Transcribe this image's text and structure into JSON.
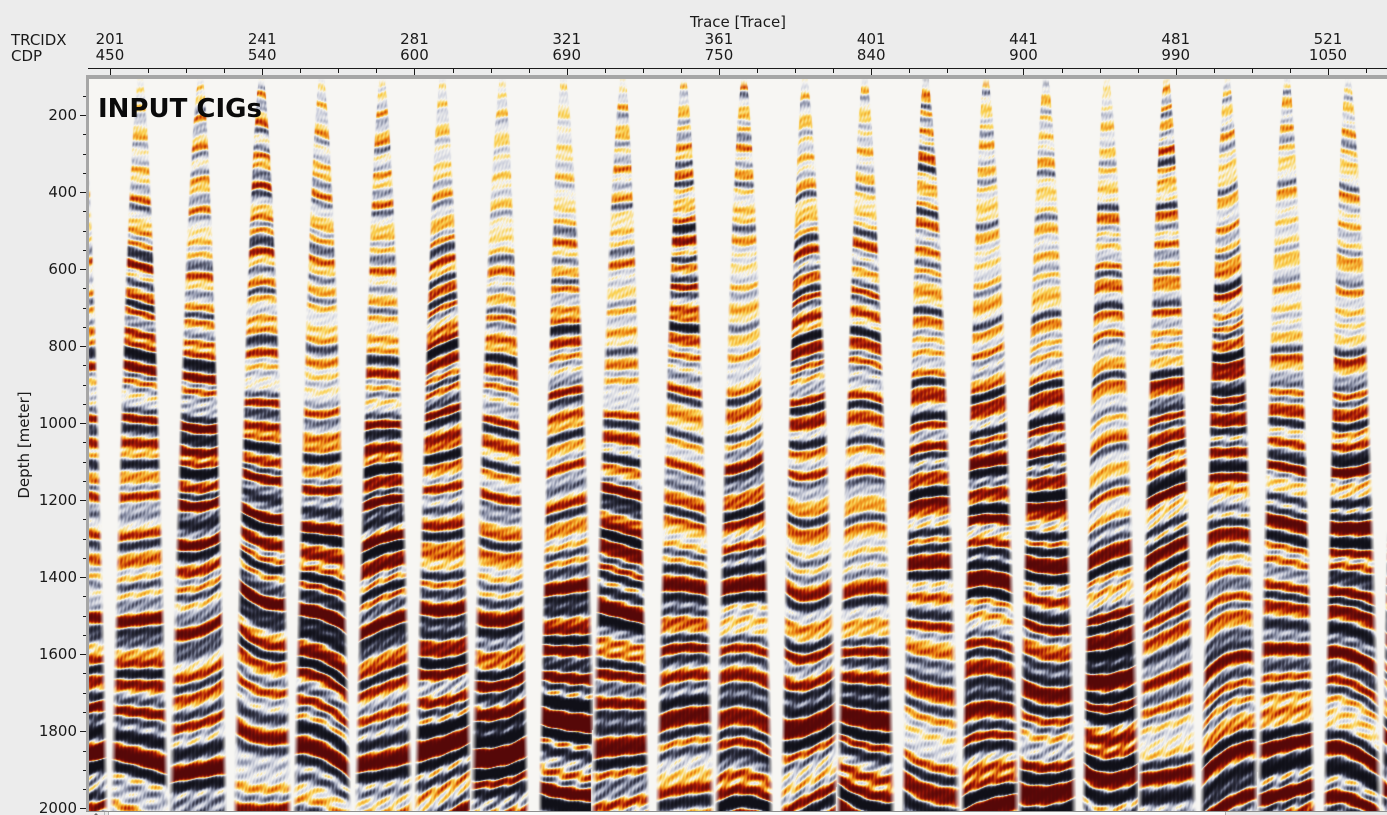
{
  "window": {
    "background": "#ececec"
  },
  "top_axis": {
    "title": "Trace [Trace]",
    "row1_label": "TRCIDX",
    "row2_label": "CDP"
  },
  "left_axis": {
    "title": "Depth [meter]"
  },
  "plot": {
    "overlay_title": "INPUT CIGs"
  },
  "chart_data": {
    "type": "heatmap",
    "title": "INPUT CIGs",
    "xlabel": "Trace [Trace]",
    "ylabel": "Depth [meter]",
    "x_tick_label_rows": [
      "TRCIDX",
      "CDP"
    ],
    "x_ticks": [
      {
        "trcidx": 201,
        "cdp": 450
      },
      {
        "trcidx": 241,
        "cdp": 540
      },
      {
        "trcidx": 281,
        "cdp": 600
      },
      {
        "trcidx": 321,
        "cdp": 690
      },
      {
        "trcidx": 361,
        "cdp": 750
      },
      {
        "trcidx": 401,
        "cdp": 840
      },
      {
        "trcidx": 441,
        "cdp": 900
      },
      {
        "trcidx": 481,
        "cdp": 990
      },
      {
        "trcidx": 521,
        "cdp": 1050
      }
    ],
    "xaxis": {
      "unit": "Trace",
      "min": 195.5,
      "max": 536.5,
      "major_step": 40,
      "minor_step": 10
    },
    "yaxis": {
      "unit": "meter",
      "min": 106.5,
      "max": 2007,
      "major_ticks": [
        200,
        400,
        600,
        800,
        1000,
        1200,
        1400,
        1600,
        1800,
        2000
      ],
      "minor_step": 50
    },
    "legend": "none",
    "grid": false,
    "content_description": "About 22 prestack common-image gathers displayed side by side in a red-white-blue/yellow seismic density colormap. Each gather is a narrow column at shallow depth that fans out wider with depth (offset mute), with weak yellow/slate events shallow and strong red/black events below ~1200 m.",
    "render": {
      "seed": 11,
      "plot_bg": "#f7f6f3",
      "gather_first_center": 51,
      "gather_spacing": 60.35,
      "trace_width": 3.8,
      "max_half_width": 29.5,
      "min_half_width": 3.5,
      "widen_exponent": 0.55,
      "depth_stretch": 0.22,
      "amp_base": 0.3,
      "amp_gain": 1.55,
      "periods": [
        44,
        30,
        21,
        14.5,
        9.8
      ],
      "weights": [
        0.42,
        0.78,
        1.0,
        0.88,
        0.5
      ],
      "pos_stops": [
        [
          248,
          247,
          243
        ],
        [
          251,
          210,
          82
        ],
        [
          236,
          131,
          18
        ],
        [
          175,
          28,
          8
        ],
        [
          86,
          8,
          8
        ]
      ],
      "neg_stops": [
        [
          248,
          247,
          243
        ],
        [
          207,
          210,
          222
        ],
        [
          137,
          143,
          166
        ],
        [
          57,
          59,
          78
        ],
        [
          16,
          16,
          24
        ]
      ]
    }
  }
}
